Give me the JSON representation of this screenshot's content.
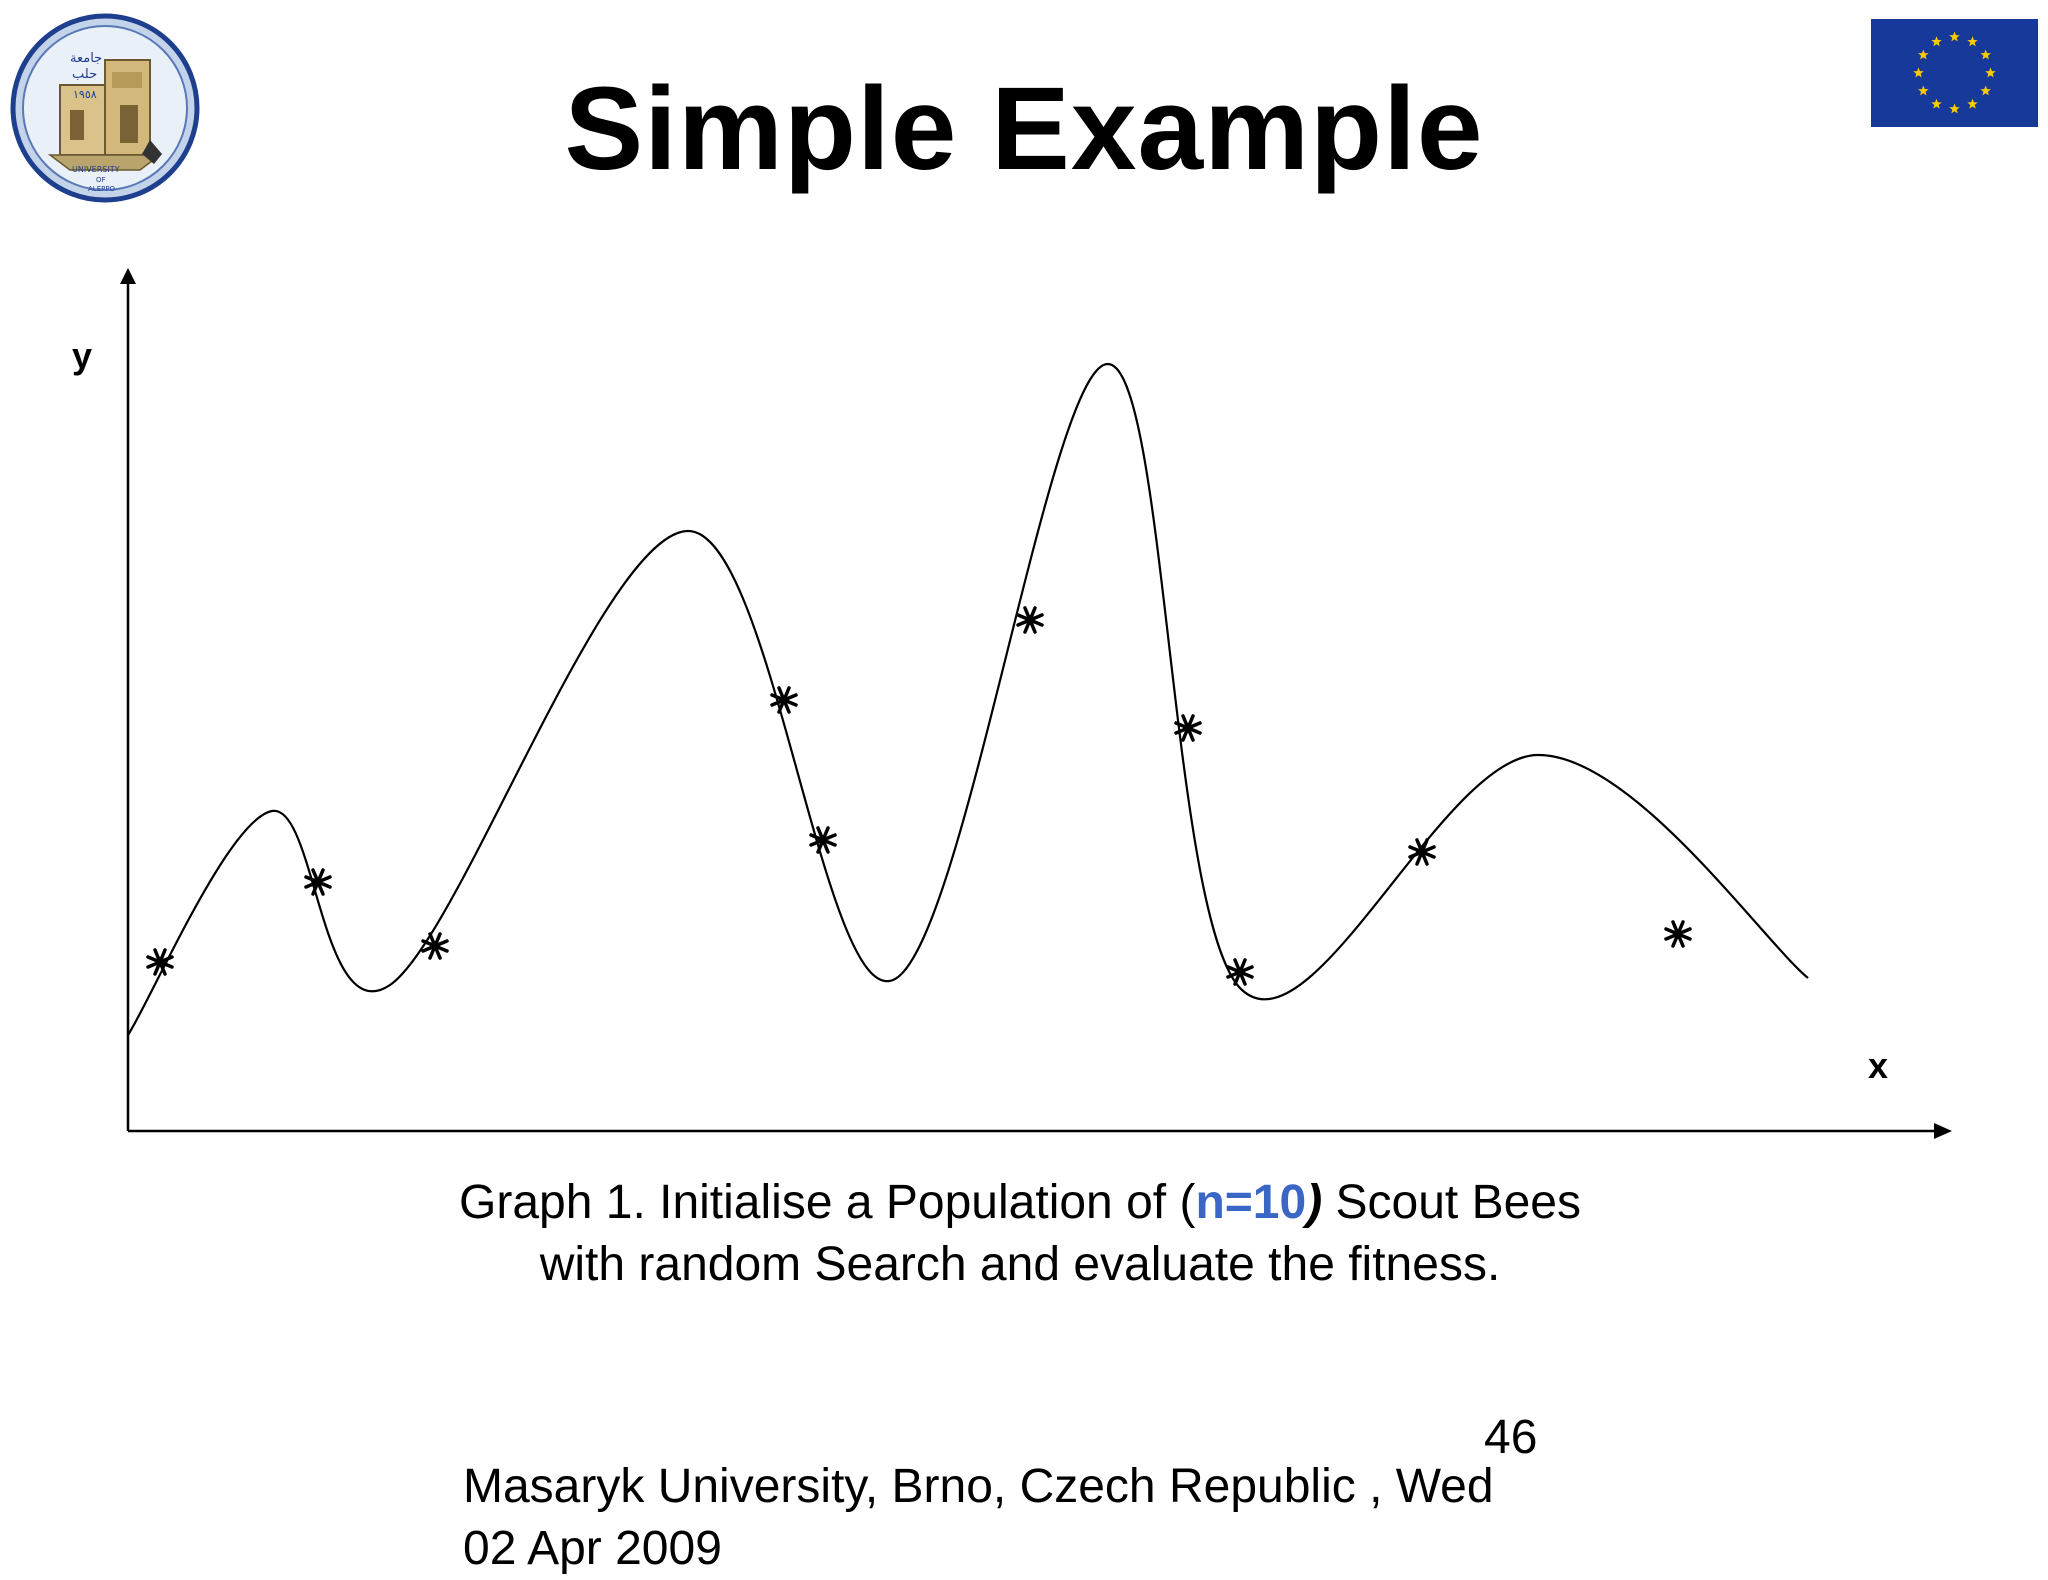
{
  "slide": {
    "title": "Simple Example",
    "axis_y_label": "y",
    "axis_x_label": "x",
    "caption": {
      "prefix": "Graph 1. Initialise a Population of (",
      "highlight": "n=10",
      "close_paren": ")",
      "suffix": " Scout Bees",
      "line2": "with random Search and evaluate the fitness."
    },
    "slide_number": "46",
    "footer": {
      "line1": "Masaryk University, Brno, Czech Republic , Wed",
      "line2": "02 Apr 2009"
    }
  },
  "logos": {
    "left": {
      "icon": "university-of-aleppo-seal-icon",
      "text_lines": [
        "جامعة",
        "حلب",
        "١٩٥٨",
        "UNIVERSITY",
        "OF",
        "ALEPPO"
      ]
    },
    "right": {
      "icon": "eu-flag-icon"
    }
  },
  "colors": {
    "highlight": "#3a66c6",
    "eu_blue": "#17399a",
    "eu_star": "#ffcc00"
  }
}
